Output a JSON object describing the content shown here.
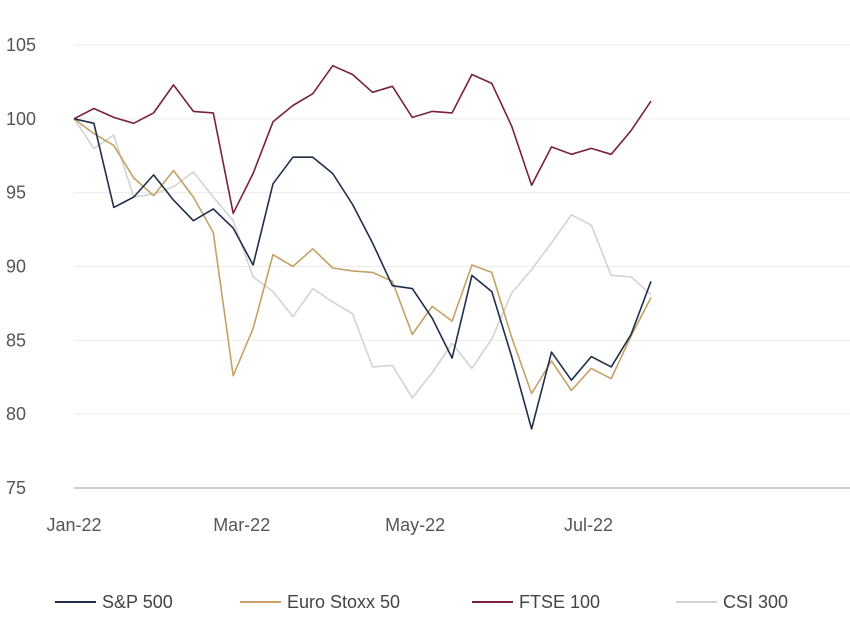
{
  "chart_data": {
    "type": "line",
    "title": "",
    "xlabel": "",
    "ylabel": "",
    "ylim": [
      75,
      105
    ],
    "yticks": [
      75,
      80,
      85,
      90,
      95,
      100,
      105
    ],
    "xlim": [
      "2022-01-01",
      "2022-10-01"
    ],
    "xticks": [
      {
        "date": "2022-01-01",
        "label": "Jan-22"
      },
      {
        "date": "2022-03-01",
        "label": "Mar-22"
      },
      {
        "date": "2022-05-01",
        "label": "May-22"
      },
      {
        "date": "2022-07-01",
        "label": "Jul-22"
      }
    ],
    "grid": "horizontal",
    "legend_position": "bottom",
    "x": [
      "2022-01-01",
      "2022-01-08",
      "2022-01-15",
      "2022-01-22",
      "2022-01-29",
      "2022-02-05",
      "2022-02-12",
      "2022-02-19",
      "2022-02-26",
      "2022-03-05",
      "2022-03-12",
      "2022-03-19",
      "2022-03-26",
      "2022-04-02",
      "2022-04-09",
      "2022-04-16",
      "2022-04-23",
      "2022-04-30",
      "2022-05-07",
      "2022-05-14",
      "2022-05-21",
      "2022-05-28",
      "2022-06-04",
      "2022-06-11",
      "2022-06-18",
      "2022-06-25",
      "2022-07-02",
      "2022-07-09",
      "2022-07-16",
      "2022-07-23",
      "2022-07-30"
    ],
    "series": [
      {
        "name": "S&P 500",
        "color": "#1d2f4a",
        "values": [
          100,
          99.7,
          94,
          94.7,
          96.2,
          94.5,
          93.1,
          93.9,
          92.6,
          90.1,
          95.6,
          97.4,
          97.4,
          96.3,
          94.2,
          91.6,
          88.7,
          88.5,
          86.5,
          83.8,
          89.4,
          88.3,
          83.9,
          79.0,
          84.2,
          82.3,
          83.9,
          83.2,
          85.4,
          89.0,
          null
        ]
      },
      {
        "name": "Euro Stoxx 50",
        "color": "#c5a165",
        "values": [
          100,
          99.0,
          98.2,
          96.0,
          94.8,
          96.5,
          94.7,
          92.3,
          82.6,
          85.8,
          90.8,
          90.0,
          91.2,
          89.9,
          89.7,
          89.6,
          89.0,
          85.4,
          87.3,
          86.3,
          90.1,
          89.6,
          85.2,
          81.4,
          83.6,
          81.6,
          83.1,
          82.4,
          85.3,
          87.9,
          null
        ]
      },
      {
        "name": "FTSE 100",
        "color": "#7a2043",
        "values": [
          100,
          100.7,
          100.1,
          99.7,
          100.4,
          102.3,
          100.5,
          100.4,
          93.6,
          96.3,
          99.8,
          100.9,
          101.7,
          103.6,
          103.0,
          101.8,
          102.2,
          100.1,
          100.5,
          100.4,
          103.0,
          102.4,
          99.5,
          95.5,
          98.1,
          97.6,
          98.0,
          97.6,
          99.2,
          101.2,
          null
        ]
      },
      {
        "name": "CSI 300",
        "color": "#d3d3d3",
        "values": [
          100,
          98.0,
          98.9,
          94.7,
          94.9,
          95.4,
          96.4,
          94.7,
          93.1,
          89.3,
          88.3,
          86.6,
          88.5,
          87.6,
          86.8,
          83.2,
          83.3,
          81.1,
          82.8,
          84.8,
          83.1,
          85.1,
          88.2,
          89.8,
          91.6,
          93.5,
          92.8,
          89.4,
          89.3,
          88.1,
          null
        ]
      }
    ]
  }
}
